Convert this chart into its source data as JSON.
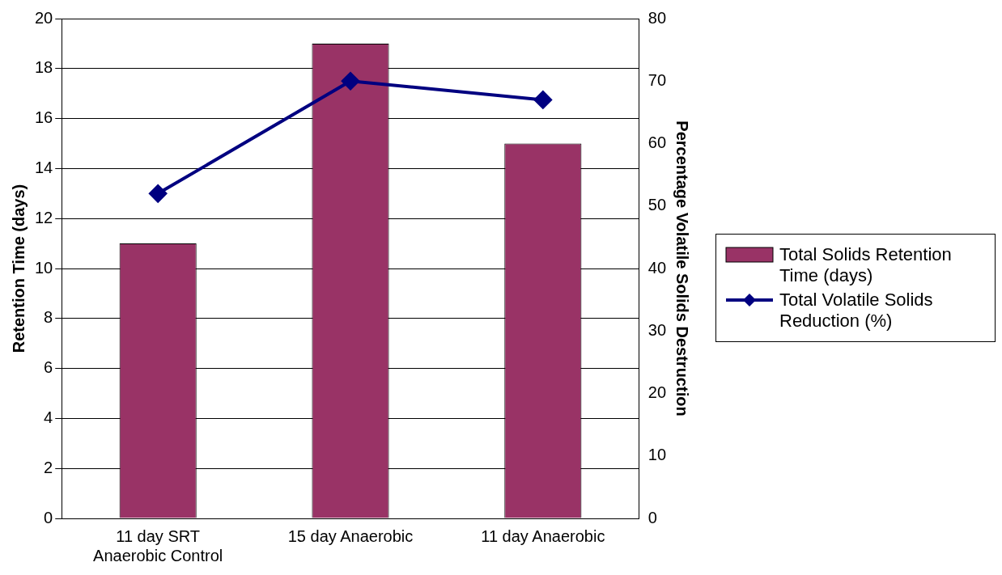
{
  "chart_data": {
    "type": "bar",
    "categories": [
      "11 day SRT Anaerobic Control",
      "15 day Anaerobic",
      "11 day Anaerobic"
    ],
    "series": [
      {
        "name": "Total Solids Retention Time (days)",
        "color": "#993366",
        "values": [
          11,
          19,
          15
        ]
      },
      {
        "name": "Total Volatile Solids Reduction (%)",
        "type": "line",
        "axis": "y2",
        "color": "#000080",
        "values": [
          52,
          70,
          67
        ]
      }
    ],
    "ylabel": "Retention Time (days)",
    "y2label": "Percentage Volatile Solids Destruction",
    "ylim": [
      0,
      20
    ],
    "yticks": [
      0,
      2,
      4,
      6,
      8,
      10,
      12,
      14,
      16,
      18,
      20
    ],
    "y2lim": [
      0,
      80
    ],
    "y2ticks": [
      0,
      10,
      20,
      30,
      40,
      50,
      60,
      70,
      80
    ],
    "grid": "y",
    "legend": "right",
    "marker": "diamond"
  }
}
